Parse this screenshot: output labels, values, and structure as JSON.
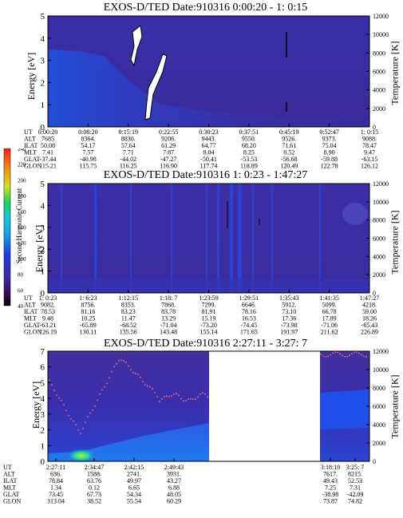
{
  "panels": [
    {
      "title": "EXOS-D/TED   Date:910316  0:00:20 - 1: 0:15",
      "ylabel_left": "Energy [eV]",
      "ylabel_right": "Temperature [K]",
      "yticks_left": [
        "0",
        "1",
        "2",
        "3",
        "4",
        "5"
      ],
      "yticks_right": [
        "0",
        "2000",
        "4000",
        "6000",
        "8000",
        "10000",
        "12000"
      ],
      "row_labels": [
        "UT",
        "ALT",
        "ILAT",
        "MLT",
        "GLAT",
        "GLON"
      ],
      "columns": [
        [
          "0:00:20",
          "7685",
          "50.08",
          "7.41",
          "-37.44",
          "115.21"
        ],
        [
          "0:08:20",
          "8364.",
          "54.17",
          "7.57",
          "-40.98",
          "115.75"
        ],
        [
          "0:15:19",
          "8830.",
          "57.64",
          "7.71",
          "-44.02",
          "116.25"
        ],
        [
          "0:22:55",
          "9206.",
          "61.29",
          "7.87",
          "-47.27",
          "116.90"
        ],
        [
          "0:30:23",
          "9443.",
          "64.77",
          "8.04",
          "-50.41",
          "117.74"
        ],
        [
          "0:37:51",
          "9550.",
          "68.20",
          "8.25",
          "-53.53",
          "118.89"
        ],
        [
          "0:45:19",
          "9526.",
          "71.61",
          "8.52",
          "-56.68",
          "120.49"
        ],
        [
          "0:52:47",
          "9373.",
          "75.04",
          "8.90",
          "-59.88",
          "122.78"
        ],
        [
          "1: 0:15",
          "9088.",
          "78.47",
          "9.47",
          "-63.15",
          "126.12"
        ]
      ]
    },
    {
      "title": "EXOS-D/TED   Date:910316  1: 0:23 - 1:47:27",
      "ylabel_left": "Energy [eV]",
      "ylabel_right": "Temperature [K]",
      "yticks_left": [
        "0",
        "1",
        "2",
        "3",
        "4",
        "5"
      ],
      "yticks_right": [
        "0",
        "2000",
        "4000",
        "6000",
        "8000",
        "10000",
        "12000"
      ],
      "row_labels": [
        "UT",
        "ALT",
        "ILAT",
        "MLT",
        "GLAT",
        "GLON"
      ],
      "columns": [
        [
          "1: 0:23",
          "9082.",
          "78.53",
          "9.48",
          "-63.21",
          "126.19"
        ],
        [
          "1: 6:23",
          "8756.",
          "81.16",
          "10.25",
          "-65.89",
          "130.11"
        ],
        [
          "1:12:15",
          "8353.",
          "83.23",
          "11.47",
          "-68.52",
          "135.56"
        ],
        [
          "1:18: 7",
          "7868.",
          "83.78",
          "13.29",
          "-71.04",
          "143.48"
        ],
        [
          "1:23:59",
          "7299.",
          "81.91",
          "15.19",
          "-73.20",
          "155.14"
        ],
        [
          "1:29:51",
          "6646.",
          "78.16",
          "16.53",
          "-74.45",
          "171.65"
        ],
        [
          "1:35:43",
          "5912.",
          "73.10",
          "17.36",
          "-73.98",
          "191.97"
        ],
        [
          "1:41:35",
          "5099.",
          "66.78",
          "17.89",
          "-71.06",
          "211.62"
        ],
        [
          "1:47:27",
          "4218.",
          "59.00",
          "18.26",
          "-65.43",
          "226.89"
        ]
      ]
    },
    {
      "title": "EXOS-D/TED   Date:910316  2:27:11 - 3:27: 7",
      "ylabel_left": "Energy [eV]",
      "ylabel_right": "Temperature [K]",
      "yticks_left": [
        "0",
        "1",
        "2",
        "3",
        "4",
        "5",
        "6",
        "7"
      ],
      "yticks_right": [
        "0",
        "2000",
        "4000",
        "6000",
        "8000",
        "10000",
        "12000"
      ],
      "row_labels": [
        "UT",
        "ALT",
        "ILAT",
        "MLT",
        "GLAT",
        "GLON"
      ],
      "columns_left": [
        [
          "2:27:11",
          "636.",
          "78.84",
          "1.34",
          "73.45",
          "313.04"
        ],
        [
          "2:34:47",
          "1588.",
          "63.76",
          "0.12",
          "67.73",
          "38.52"
        ],
        [
          "2:42:15",
          "2741.",
          "49.97",
          "6.65",
          "54.34",
          "55.54"
        ],
        [
          "2:49:43",
          "3931.",
          "43.27",
          "6.88",
          "48.05",
          "60.29"
        ]
      ],
      "columns_right": [
        [
          "3:18:19",
          "7617.",
          "49.43",
          "7.25",
          "-38.98",
          "73.87"
        ],
        [
          "3:25: 7",
          "8215.",
          "52.53",
          "7.31",
          "-42.09",
          "74.82"
        ]
      ]
    }
  ],
  "colorbar": {
    "label": "Second Harmonic Current",
    "ticks": [
      "40",
      "60",
      "80",
      "100",
      "120",
      "140",
      "160",
      "180",
      "200",
      "220",
      "240"
    ]
  },
  "chart_data": [
    {
      "type": "heatmap",
      "title": "EXOS-D/TED   Date:910316  0:00:20 - 1: 0:15",
      "xlabel": "UT",
      "ylabel": "Energy [eV]",
      "ylim": [
        0,
        5
      ],
      "y2label": "Temperature [K]",
      "y2lim": [
        0,
        12000
      ],
      "x": [
        "0:00:20",
        "0:08:20",
        "0:15:19",
        "0:22:55",
        "0:30:23",
        "0:37:51",
        "0:45:19",
        "0:52:47",
        "1: 0:15"
      ]
    },
    {
      "type": "heatmap",
      "title": "EXOS-D/TED   Date:910316  1: 0:23 - 1:47:27",
      "xlabel": "UT",
      "ylabel": "Energy [eV]",
      "ylim": [
        0,
        5
      ],
      "y2label": "Temperature [K]",
      "y2lim": [
        0,
        12000
      ],
      "x": [
        "1: 0:23",
        "1: 6:23",
        "1:12:15",
        "1:18: 7",
        "1:23:59",
        "1:29:51",
        "1:35:43",
        "1:41:35",
        "1:47:27"
      ],
      "colorbar": {
        "label": "Second Harmonic Current",
        "range": [
          40,
          240
        ]
      }
    },
    {
      "type": "heatmap",
      "title": "EXOS-D/TED   Date:910316  2:27:11 - 3:27: 7",
      "xlabel": "UT",
      "ylabel": "Energy [eV]",
      "ylim": [
        0,
        7
      ],
      "y2label": "Temperature [K]",
      "y2lim": [
        0,
        12000
      ],
      "x": [
        "2:27:11",
        "2:34:47",
        "2:42:15",
        "2:49:43",
        "3:18:19",
        "3:25: 7"
      ]
    }
  ]
}
